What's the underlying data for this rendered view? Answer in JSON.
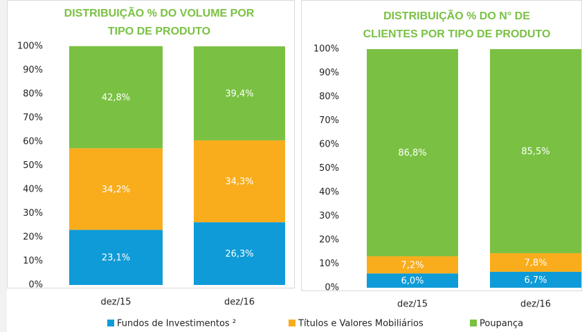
{
  "chart_data": [
    {
      "type": "stacked_bar",
      "title": [
        "DISTRIBUIÇÃO % DO VOLUME POR",
        "TIPO DE PRODUTO"
      ],
      "categories": [
        "dez/15",
        "dez/16"
      ],
      "series": [
        {
          "name": "Fundos de Investimentos ²",
          "color": "#0f9bd7",
          "values": [
            23.1,
            26.3
          ],
          "value_labels": [
            "23,1%",
            "26,3%"
          ]
        },
        {
          "name": "Títulos e Valores Mobiliários",
          "color": "#f9ad1c",
          "values": [
            34.2,
            34.3
          ],
          "value_labels": [
            "34,2%",
            "34,3%"
          ]
        },
        {
          "name": "Poupança",
          "color": "#7ac143",
          "values": [
            42.8,
            39.4
          ],
          "value_labels": [
            "42,8%",
            "39,4%"
          ]
        }
      ],
      "ylim": [
        0,
        100
      ],
      "yticks": [
        {
          "value": 0,
          "label": "0%"
        },
        {
          "value": 10,
          "label": "10%"
        },
        {
          "value": 20,
          "label": "20%"
        },
        {
          "value": 30,
          "label": "30%"
        },
        {
          "value": 40,
          "label": "40%"
        },
        {
          "value": 50,
          "label": "50%"
        },
        {
          "value": 60,
          "label": "60%"
        },
        {
          "value": 70,
          "label": "70%"
        },
        {
          "value": 80,
          "label": "80%"
        },
        {
          "value": 90,
          "label": "90%"
        },
        {
          "value": 100,
          "label": "100%"
        }
      ],
      "legend": "bottom"
    },
    {
      "type": "stacked_bar",
      "title": [
        "DISTRIBUIÇÃO % DO N° DE",
        "CLIENTES POR TIPO DE PRODUTO"
      ],
      "categories": [
        "dez/15",
        "dez/16"
      ],
      "series": [
        {
          "color": "#0f9bd7",
          "values": [
            6.0,
            6.7
          ],
          "value_labels": [
            "6,0%",
            "6,7%"
          ]
        },
        {
          "color": "#f9ad1c",
          "values": [
            7.2,
            7.8
          ],
          "value_labels": [
            "7,2%",
            "7,8%"
          ]
        },
        {
          "color": "#7ac143",
          "values": [
            86.8,
            85.5
          ],
          "value_labels": [
            "86,8%",
            "85,5%"
          ]
        }
      ],
      "ylim": [
        0,
        100
      ],
      "yticks": [
        {
          "value": 0,
          "label": "0%"
        },
        {
          "value": 10,
          "label": "10%"
        },
        {
          "value": 20,
          "label": "20%"
        },
        {
          "value": 30,
          "label": "30%"
        },
        {
          "value": 40,
          "label": "40%"
        },
        {
          "value": 50,
          "label": "50%"
        },
        {
          "value": 60,
          "label": "60%"
        },
        {
          "value": 70,
          "label": "70%"
        },
        {
          "value": 80,
          "label": "80%"
        },
        {
          "value": 90,
          "label": "90%"
        },
        {
          "value": 100,
          "label": "100%"
        }
      ]
    }
  ]
}
